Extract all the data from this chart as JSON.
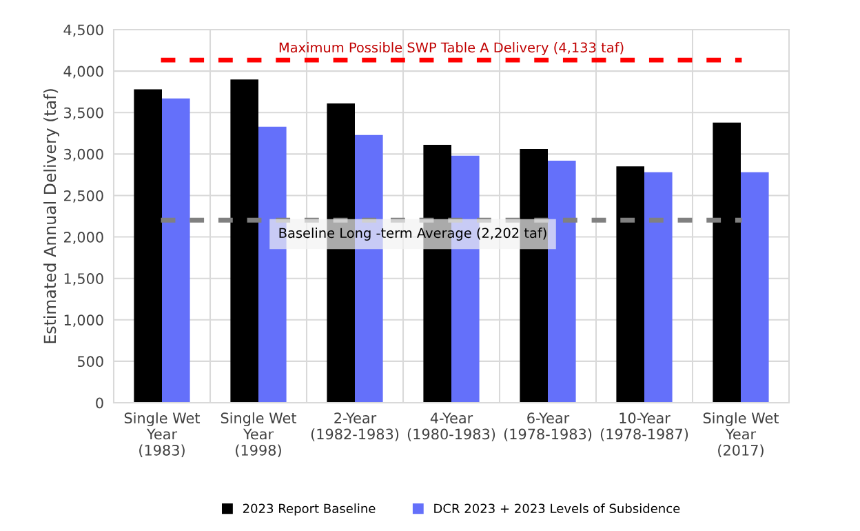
{
  "chart_data": {
    "type": "bar",
    "categories": [
      "Single Wet\nYear\n(1983)",
      "Single Wet\nYear\n(1998)",
      "2-Year\n(1982-1983)",
      "4-Year\n(1980-1983)",
      "6-Year\n(1978-1983)",
      "10-Year\n(1978-1987)",
      "Single Wet\nYear\n(2017)"
    ],
    "series": [
      {
        "name": "2023 Report Baseline",
        "color": "#000000",
        "values": [
          3780,
          3900,
          3610,
          3110,
          3060,
          2850,
          3380
        ]
      },
      {
        "name": "DCR 2023 + 2023 Levels of Subsidence",
        "color": "#6470fa",
        "values": [
          3670,
          3330,
          3230,
          2980,
          2920,
          2780,
          2780
        ]
      }
    ],
    "ylabel": "Estimated Annual Delivery (taf)",
    "ylim": [
      0,
      4500
    ],
    "yticks": [
      {
        "value": 0,
        "label": "0"
      },
      {
        "value": 500,
        "label": "500"
      },
      {
        "value": 1000,
        "label": "1,000"
      },
      {
        "value": 1500,
        "label": "1,500"
      },
      {
        "value": 2000,
        "label": "2,000"
      },
      {
        "value": 2500,
        "label": "2,500"
      },
      {
        "value": 3000,
        "label": "3,000"
      },
      {
        "value": 3500,
        "label": "3,500"
      },
      {
        "value": 4000,
        "label": "4,000"
      },
      {
        "value": 4500,
        "label": "4,500"
      }
    ],
    "ref_lines": [
      {
        "axis": "y",
        "value": 4133,
        "label": "Maximum Possible SWP Table A Delivery (4,133 taf)",
        "color": "#ff0000",
        "line_style": "dashed"
      },
      {
        "axis": "y",
        "value": 2202,
        "label": "Baseline Long -term Average (2,202 taf)",
        "color": "#808080",
        "line_style": "dashed"
      }
    ],
    "grid": true,
    "legend": "bottom"
  }
}
